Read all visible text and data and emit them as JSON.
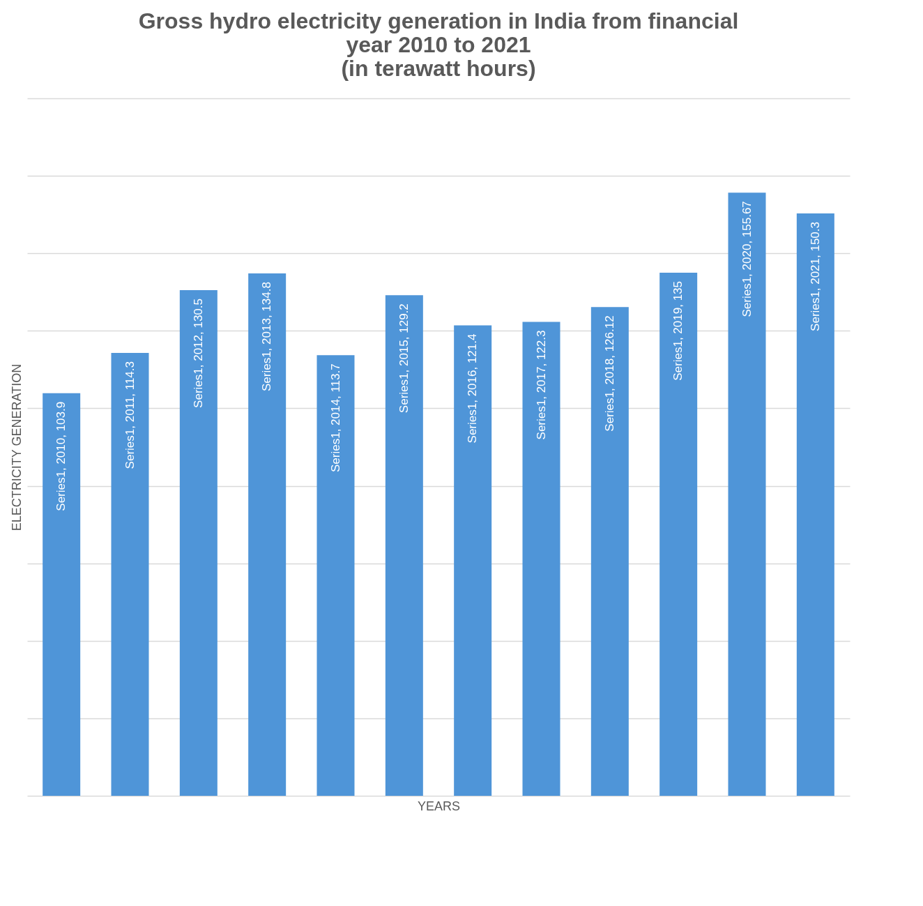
{
  "chart_data": {
    "type": "bar",
    "title": "Gross hydro electricity generation in India from financial\nyear 2010 to 2021\n(in terawatt hours)",
    "xlabel": "YEARS",
    "ylabel": "ELECTRICITY GENERATION",
    "categories": [
      null,
      null,
      null,
      null,
      null,
      null,
      null,
      null,
      null,
      null,
      null,
      null
    ],
    "series": [
      {
        "color": "#4f95d8",
        "values": [
          103.9,
          114.3,
          130.5,
          134.8,
          113.7,
          129.2,
          121.4,
          122.3,
          126.12,
          135,
          155.67,
          150.3
        ],
        "value_labels": [
          "Series1, 2010, 103.9",
          "Series1, 2011, 114.3",
          "Series1, 2012, 130.5",
          "Series1, 2013, 134.8",
          "Series1, 2014, 113.7",
          "Series1, 2015, 129.2",
          "Series1, 2016, 121.4",
          "Series1, 2017, 122.3",
          "Series1, 2018, 126.12",
          "Series1, 2019, 135",
          "Series1, 2020, 155.67",
          "Series1, 2021, 150.3"
        ]
      }
    ],
    "ylim": [
      0,
      180
    ],
    "yticks": [
      {
        "value": 0,
        "label": null
      },
      {
        "value": 20,
        "label": null
      },
      {
        "value": 40,
        "label": null
      },
      {
        "value": 60,
        "label": null
      },
      {
        "value": 80,
        "label": null
      },
      {
        "value": 100,
        "label": null
      },
      {
        "value": 120,
        "label": null
      },
      {
        "value": 140,
        "label": null
      },
      {
        "value": 160,
        "label": null
      },
      {
        "value": 180,
        "label": null
      }
    ],
    "grid": "y"
  }
}
